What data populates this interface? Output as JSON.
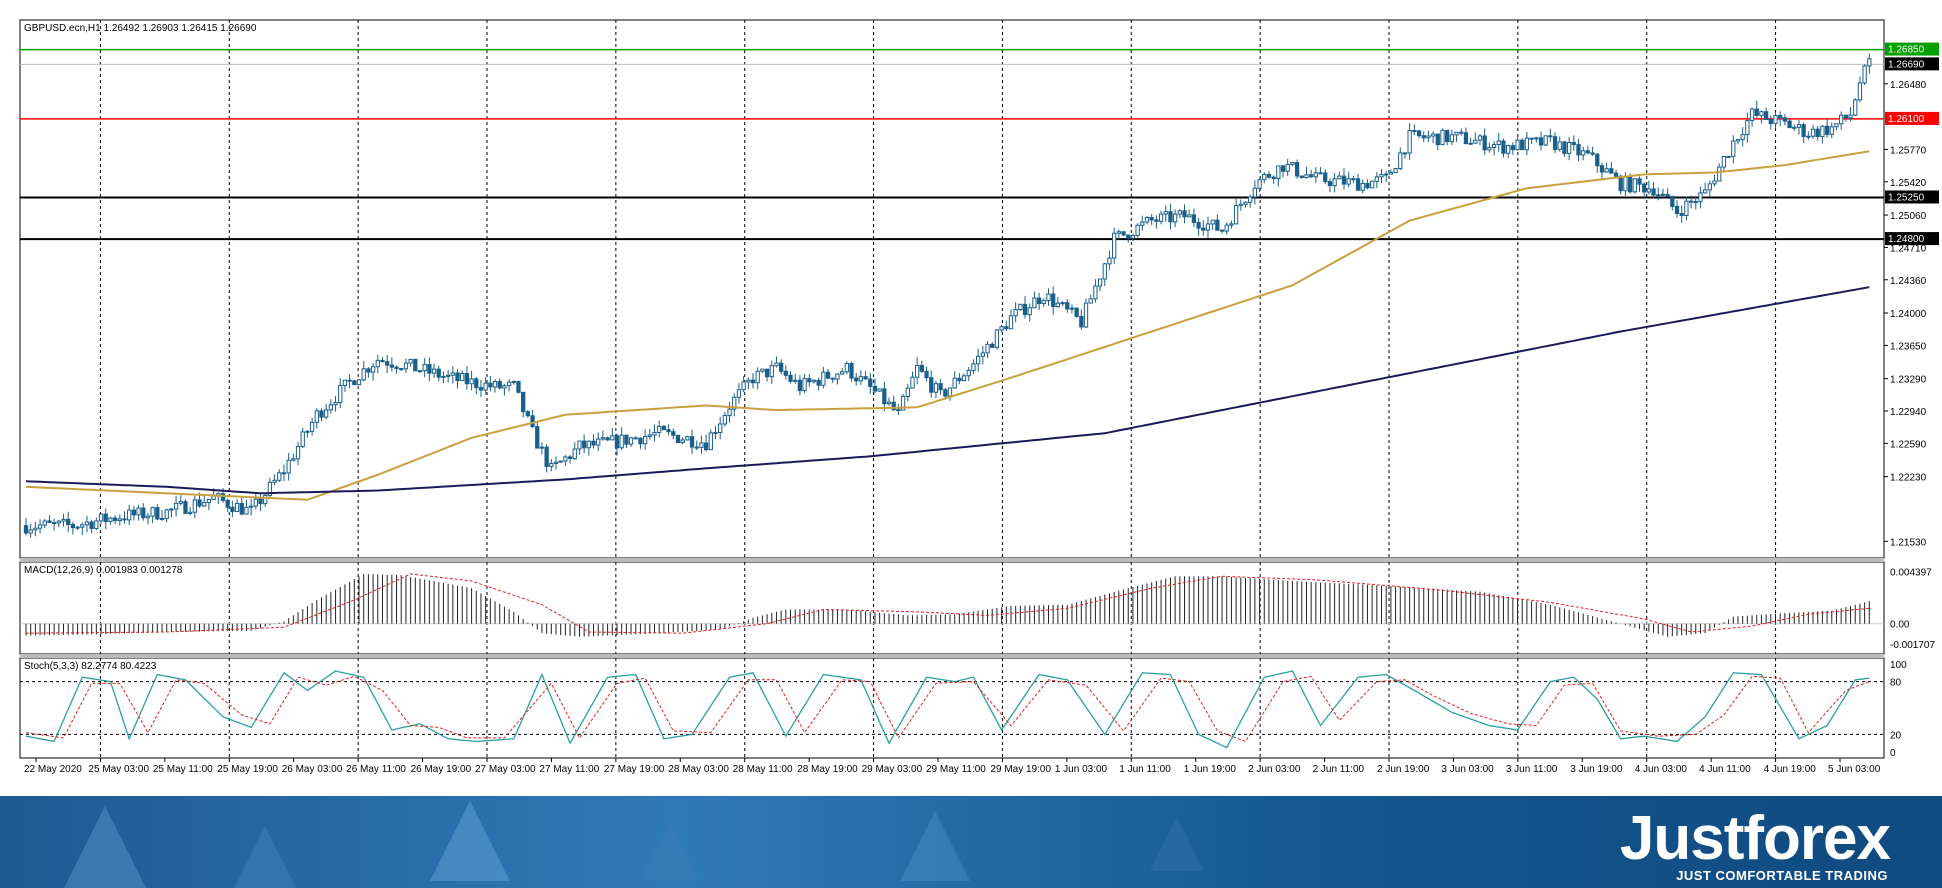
{
  "chart_data": {
    "type": "candlestick",
    "symbol_header": "GBPUSD.ecn,H1  1.26492 1.26903 1.26415 1.26690",
    "price_axis": {
      "ylim": [
        1.2135,
        1.2717
      ],
      "ticks": [
        "1.26480",
        "1.25770",
        "1.25420",
        "1.25060",
        "1.24710",
        "1.24360",
        "1.24000",
        "1.23650",
        "1.23290",
        "1.22940",
        "1.22590",
        "1.22230",
        "1.21530"
      ]
    },
    "levels": [
      {
        "label": "1.26850",
        "value": 1.2685,
        "color": "#00a000"
      },
      {
        "label": "1.26100",
        "value": 1.261,
        "color": "#ff0000"
      },
      {
        "label": "1.25250",
        "value": 1.2525,
        "color": "#000000"
      },
      {
        "label": "1.24800",
        "value": 1.248,
        "color": "#000000"
      }
    ],
    "current_price": {
      "label": "1.26690",
      "value": 1.2669
    },
    "x_labels": [
      "22 May 2020",
      "25 May 03:00",
      "25 May 11:00",
      "25 May 19:00",
      "26 May 03:00",
      "26 May 11:00",
      "26 May 19:00",
      "27 May 03:00",
      "27 May 11:00",
      "27 May 19:00",
      "28 May 03:00",
      "28 May 11:00",
      "28 May 19:00",
      "29 May 03:00",
      "29 May 11:00",
      "29 May 19:00",
      "1 Jun 03:00",
      "1 Jun 11:00",
      "1 Jun 19:00",
      "2 Jun 03:00",
      "2 Jun 11:00",
      "2 Jun 19:00",
      "3 Jun 03:00",
      "3 Jun 11:00",
      "3 Jun 19:00",
      "4 Jun 03:00",
      "4 Jun 11:00",
      "4 Jun 19:00",
      "5 Jun 03:00"
    ],
    "close_anchors": [
      [
        0,
        1.217
      ],
      [
        10,
        1.217
      ],
      [
        20,
        1.218
      ],
      [
        30,
        1.2185
      ],
      [
        40,
        1.22
      ],
      [
        48,
        1.2185
      ],
      [
        55,
        1.223
      ],
      [
        62,
        1.229
      ],
      [
        70,
        1.233
      ],
      [
        75,
        1.235
      ],
      [
        80,
        1.2345
      ],
      [
        90,
        1.233
      ],
      [
        100,
        1.232
      ],
      [
        104,
        1.232
      ],
      [
        108,
        1.227
      ],
      [
        112,
        1.223
      ],
      [
        118,
        1.2255
      ],
      [
        125,
        1.226
      ],
      [
        135,
        1.227
      ],
      [
        145,
        1.226
      ],
      [
        150,
        1.23
      ],
      [
        155,
        1.233
      ],
      [
        160,
        1.234
      ],
      [
        165,
        1.232
      ],
      [
        175,
        1.234
      ],
      [
        182,
        1.231
      ],
      [
        186,
        1.229
      ],
      [
        190,
        1.234
      ],
      [
        195,
        1.231
      ],
      [
        202,
        1.2345
      ],
      [
        210,
        1.2395
      ],
      [
        217,
        1.242
      ],
      [
        225,
        1.239
      ],
      [
        232,
        1.248
      ],
      [
        240,
        1.25
      ],
      [
        247,
        1.2505
      ],
      [
        255,
        1.249
      ],
      [
        262,
        1.254
      ],
      [
        268,
        1.256
      ],
      [
        275,
        1.2545
      ],
      [
        285,
        1.254
      ],
      [
        290,
        1.2545
      ],
      [
        295,
        1.259
      ],
      [
        305,
        1.259
      ],
      [
        315,
        1.258
      ],
      [
        325,
        1.2585
      ],
      [
        333,
        1.257
      ],
      [
        340,
        1.254
      ],
      [
        347,
        1.2535
      ],
      [
        352,
        1.251
      ],
      [
        358,
        1.253
      ],
      [
        364,
        1.2585
      ],
      [
        368,
        1.2615
      ],
      [
        375,
        1.2605
      ],
      [
        380,
        1.2595
      ],
      [
        385,
        1.26
      ],
      [
        389,
        1.2615
      ],
      [
        391,
        1.265
      ],
      [
        393,
        1.2669
      ]
    ],
    "bars": 394,
    "ma_slow": {
      "color": "#c8a040",
      "points": [
        [
          0,
          1.2212
        ],
        [
          30,
          1.2205
        ],
        [
          60,
          1.2198
        ],
        [
          75,
          1.2225
        ],
        [
          95,
          1.2265
        ],
        [
          115,
          1.229
        ],
        [
          145,
          1.23
        ],
        [
          160,
          1.2295
        ],
        [
          190,
          1.2298
        ],
        [
          210,
          1.233
        ],
        [
          240,
          1.238
        ],
        [
          270,
          1.243
        ],
        [
          295,
          1.25
        ],
        [
          320,
          1.2535
        ],
        [
          345,
          1.255
        ],
        [
          360,
          1.2552
        ],
        [
          375,
          1.256
        ],
        [
          393,
          1.2575
        ]
      ]
    },
    "ma_long": {
      "color": "#1a1a5a",
      "points": [
        [
          0,
          1.2218
        ],
        [
          30,
          1.2212
        ],
        [
          50,
          1.2205
        ],
        [
          75,
          1.2208
        ],
        [
          115,
          1.222
        ],
        [
          145,
          1.2232
        ],
        [
          180,
          1.2245
        ],
        [
          230,
          1.227
        ],
        [
          260,
          1.23
        ],
        [
          300,
          1.234
        ],
        [
          340,
          1.238
        ],
        [
          393,
          1.2428
        ]
      ]
    },
    "macd": {
      "label": "MACD(12,26,9) 0.001983 0.001278",
      "ylim": [
        -0.00205,
        0.0047
      ],
      "ticks": [
        "0.004397",
        "0.00",
        "-0.001707"
      ],
      "hist_anchors": [
        [
          0,
          -0.001
        ],
        [
          15,
          -0.0009
        ],
        [
          30,
          -0.0007
        ],
        [
          48,
          -0.0006
        ],
        [
          55,
          0.0002
        ],
        [
          62,
          0.002
        ],
        [
          72,
          0.0042
        ],
        [
          80,
          0.0041
        ],
        [
          95,
          0.003
        ],
        [
          104,
          0.001
        ],
        [
          110,
          -0.0008
        ],
        [
          118,
          -0.0011
        ],
        [
          135,
          -0.0008
        ],
        [
          148,
          -0.0005
        ],
        [
          155,
          0.0005
        ],
        [
          162,
          0.0012
        ],
        [
          175,
          0.0012
        ],
        [
          188,
          0.0007
        ],
        [
          198,
          0.0008
        ],
        [
          210,
          0.0015
        ],
        [
          222,
          0.0016
        ],
        [
          235,
          0.003
        ],
        [
          245,
          0.004
        ],
        [
          255,
          0.004
        ],
        [
          270,
          0.0036
        ],
        [
          290,
          0.0032
        ],
        [
          310,
          0.0027
        ],
        [
          325,
          0.0016
        ],
        [
          340,
          0.0
        ],
        [
          350,
          -0.0011
        ],
        [
          358,
          -0.0008
        ],
        [
          364,
          0.0006
        ],
        [
          375,
          0.0009
        ],
        [
          385,
          0.0011
        ],
        [
          393,
          0.0019
        ]
      ],
      "signal_anchors": [
        [
          0,
          -0.0008
        ],
        [
          30,
          -0.0007
        ],
        [
          55,
          -0.0003
        ],
        [
          70,
          0.002
        ],
        [
          82,
          0.0042
        ],
        [
          95,
          0.0036
        ],
        [
          110,
          0.0016
        ],
        [
          120,
          -0.0007
        ],
        [
          140,
          -0.0008
        ],
        [
          158,
          0.0
        ],
        [
          170,
          0.0012
        ],
        [
          190,
          0.001
        ],
        [
          205,
          0.0007
        ],
        [
          222,
          0.0013
        ],
        [
          240,
          0.003
        ],
        [
          255,
          0.004
        ],
        [
          275,
          0.0037
        ],
        [
          300,
          0.0029
        ],
        [
          325,
          0.0018
        ],
        [
          345,
          0.0004
        ],
        [
          355,
          -0.0007
        ],
        [
          368,
          -0.0002
        ],
        [
          380,
          0.0008
        ],
        [
          393,
          0.0013
        ]
      ]
    },
    "stoch": {
      "label": "Stoch(5,3,3) 82.2774 80.4223",
      "ylim": [
        0,
        100
      ],
      "ticks": [
        "100",
        "80",
        "20",
        "0"
      ],
      "k_anchors": [
        [
          0,
          18
        ],
        [
          6,
          12
        ],
        [
          12,
          85
        ],
        [
          18,
          80
        ],
        [
          22,
          15
        ],
        [
          28,
          88
        ],
        [
          34,
          82
        ],
        [
          42,
          40
        ],
        [
          48,
          28
        ],
        [
          55,
          90
        ],
        [
          60,
          70
        ],
        [
          66,
          92
        ],
        [
          72,
          85
        ],
        [
          78,
          25
        ],
        [
          84,
          32
        ],
        [
          90,
          15
        ],
        [
          96,
          12
        ],
        [
          104,
          15
        ],
        [
          110,
          88
        ],
        [
          116,
          10
        ],
        [
          124,
          85
        ],
        [
          130,
          88
        ],
        [
          136,
          15
        ],
        [
          142,
          20
        ],
        [
          150,
          85
        ],
        [
          155,
          90
        ],
        [
          162,
          18
        ],
        [
          170,
          88
        ],
        [
          178,
          82
        ],
        [
          184,
          10
        ],
        [
          192,
          85
        ],
        [
          198,
          80
        ],
        [
          202,
          85
        ],
        [
          208,
          25
        ],
        [
          216,
          88
        ],
        [
          222,
          82
        ],
        [
          230,
          20
        ],
        [
          238,
          90
        ],
        [
          244,
          88
        ],
        [
          250,
          20
        ],
        [
          256,
          5
        ],
        [
          264,
          85
        ],
        [
          270,
          92
        ],
        [
          276,
          30
        ],
        [
          284,
          85
        ],
        [
          290,
          88
        ],
        [
          296,
          70
        ],
        [
          304,
          45
        ],
        [
          312,
          30
        ],
        [
          318,
          25
        ],
        [
          325,
          80
        ],
        [
          330,
          85
        ],
        [
          335,
          60
        ],
        [
          340,
          15
        ],
        [
          345,
          18
        ],
        [
          352,
          12
        ],
        [
          358,
          40
        ],
        [
          364,
          90
        ],
        [
          370,
          88
        ],
        [
          378,
          15
        ],
        [
          384,
          30
        ],
        [
          390,
          82
        ],
        [
          393,
          84
        ]
      ],
      "d_anchors": [
        [
          0,
          22
        ],
        [
          8,
          16
        ],
        [
          14,
          78
        ],
        [
          20,
          78
        ],
        [
          26,
          22
        ],
        [
          32,
          82
        ],
        [
          38,
          78
        ],
        [
          46,
          42
        ],
        [
          52,
          32
        ],
        [
          58,
          85
        ],
        [
          64,
          76
        ],
        [
          70,
          86
        ],
        [
          76,
          70
        ],
        [
          82,
          30
        ],
        [
          88,
          28
        ],
        [
          94,
          16
        ],
        [
          102,
          16
        ],
        [
          112,
          78
        ],
        [
          118,
          16
        ],
        [
          126,
          78
        ],
        [
          132,
          84
        ],
        [
          138,
          24
        ],
        [
          146,
          22
        ],
        [
          154,
          82
        ],
        [
          160,
          82
        ],
        [
          166,
          22
        ],
        [
          174,
          82
        ],
        [
          180,
          80
        ],
        [
          186,
          16
        ],
        [
          194,
          78
        ],
        [
          202,
          80
        ],
        [
          210,
          30
        ],
        [
          218,
          82
        ],
        [
          226,
          76
        ],
        [
          234,
          24
        ],
        [
          242,
          84
        ],
        [
          248,
          80
        ],
        [
          254,
          24
        ],
        [
          260,
          12
        ],
        [
          268,
          80
        ],
        [
          274,
          86
        ],
        [
          280,
          36
        ],
        [
          288,
          80
        ],
        [
          294,
          82
        ],
        [
          300,
          64
        ],
        [
          308,
          44
        ],
        [
          316,
          32
        ],
        [
          322,
          30
        ],
        [
          328,
          76
        ],
        [
          334,
          78
        ],
        [
          340,
          24
        ],
        [
          348,
          18
        ],
        [
          356,
          20
        ],
        [
          362,
          42
        ],
        [
          368,
          86
        ],
        [
          374,
          84
        ],
        [
          380,
          22
        ],
        [
          388,
          70
        ],
        [
          393,
          80
        ]
      ]
    }
  },
  "brand": {
    "name": "Justforex",
    "tagline": "JUST COMFORTABLE TRADING"
  }
}
